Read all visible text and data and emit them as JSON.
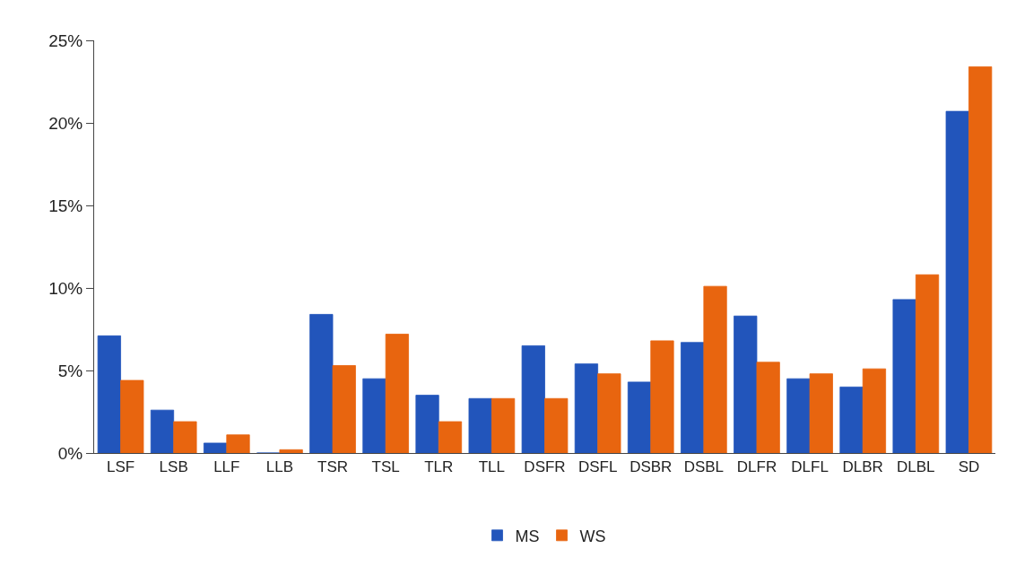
{
  "chart_data": {
    "type": "bar",
    "categories": [
      "LSF",
      "LSB",
      "LLF",
      "LLB",
      "TSR",
      "TSL",
      "TLR",
      "TLL",
      "DSFR",
      "DSFL",
      "DSBR",
      "DSBL",
      "DLFR",
      "DLFL",
      "DLBR",
      "DLBL",
      "SD"
    ],
    "series": [
      {
        "name": "MS",
        "color": "#2255bb",
        "values": [
          7.1,
          2.6,
          0.6,
          0,
          8.4,
          4.5,
          3.5,
          3.3,
          6.5,
          5.4,
          4.3,
          6.7,
          8.3,
          4.5,
          4.0,
          9.3,
          20.7
        ]
      },
      {
        "name": "WS",
        "color": "#e8650f",
        "values": [
          4.4,
          1.9,
          1.1,
          0.2,
          5.3,
          7.2,
          1.9,
          3.3,
          3.3,
          4.8,
          6.8,
          10.1,
          5.5,
          4.8,
          5.1,
          10.8,
          23.4
        ]
      }
    ],
    "ylim": [
      0,
      25
    ],
    "yticks": [
      {
        "value": 0,
        "label": "0%"
      },
      {
        "value": 5,
        "label": "5%"
      },
      {
        "value": 10,
        "label": "10%"
      },
      {
        "value": 15,
        "label": "15%"
      },
      {
        "value": 20,
        "label": "20%"
      },
      {
        "value": 25,
        "label": "25%"
      }
    ],
    "legend": "bottom"
  }
}
